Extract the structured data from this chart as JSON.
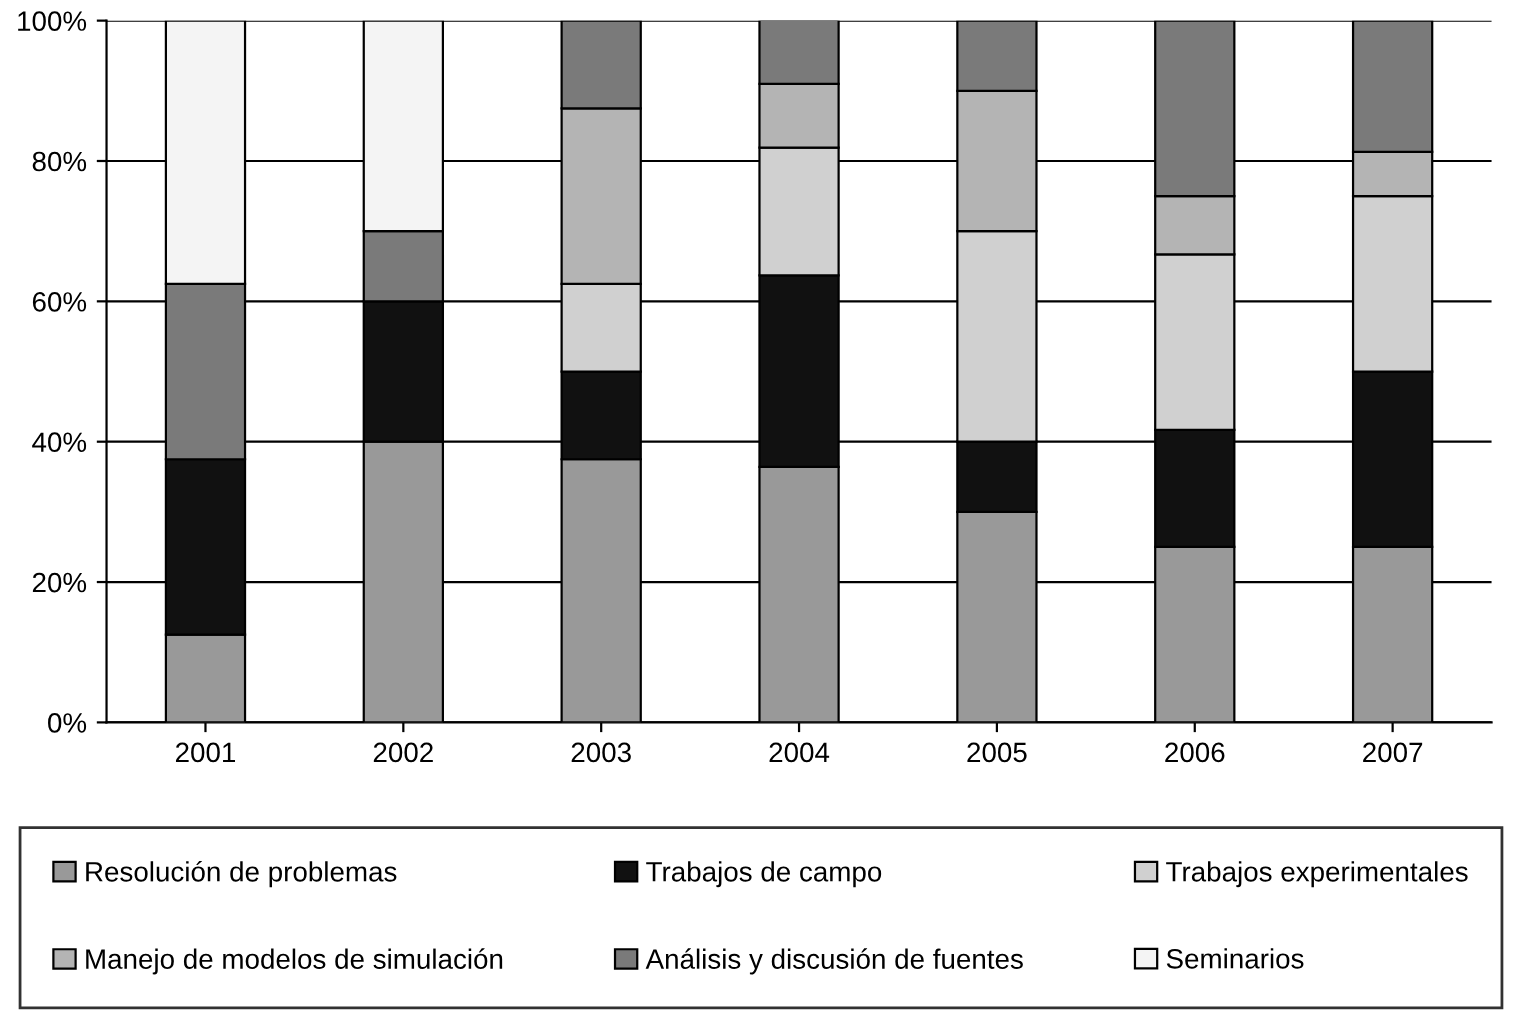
{
  "chart_data": {
    "type": "bar",
    "stacked": true,
    "categories": [
      "2001",
      "2002",
      "2003",
      "2004",
      "2005",
      "2006",
      "2007"
    ],
    "series": [
      {
        "name": "Resolución de problemas",
        "color": "#999999",
        "values": [
          12.5,
          40,
          37.5,
          36.4,
          30,
          25,
          25
        ]
      },
      {
        "name": "Trabajos de campo",
        "color": "#111111",
        "values": [
          25,
          20,
          12.5,
          27.3,
          10,
          16.7,
          25
        ]
      },
      {
        "name": "Trabajos experimentales",
        "color": "#d0d0d0",
        "values": [
          null,
          null,
          12.5,
          18.2,
          30,
          25,
          25
        ]
      },
      {
        "name": "Manejo de modelos de simulación",
        "color": "#b4b4b4",
        "values": [
          null,
          null,
          25,
          9.1,
          20,
          8.3,
          6.3
        ]
      },
      {
        "name": "Análisis y discusión de fuentes",
        "color": "#7a7a7a",
        "values": [
          25,
          10,
          12.5,
          9.1,
          10,
          25,
          18.7
        ]
      },
      {
        "name": "Seminarios",
        "color": "#f4f4f4",
        "values": [
          37.5,
          30,
          null,
          null,
          null,
          null,
          null
        ]
      }
    ],
    "ylim": [
      0,
      100
    ],
    "yticks": [
      {
        "value": 0,
        "label": "0%"
      },
      {
        "value": 20,
        "label": "20%"
      },
      {
        "value": 40,
        "label": "40%"
      },
      {
        "value": 60,
        "label": "60%"
      },
      {
        "value": 80,
        "label": "80%"
      },
      {
        "value": 100,
        "label": "100%"
      }
    ],
    "grid": "y",
    "legend": "bottom"
  }
}
